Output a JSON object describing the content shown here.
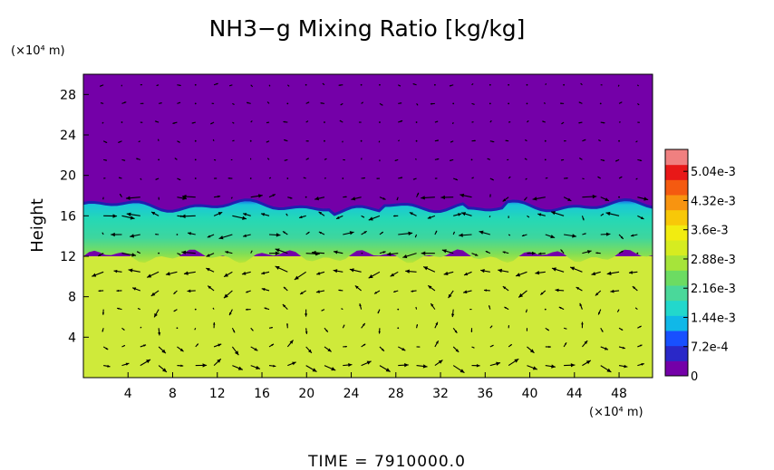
{
  "chart_data": {
    "type": "heatmap",
    "title": "NH3−g Mixing Ratio [kg/kg]",
    "ylabel": "Height",
    "x_unit": "(×10⁴ m)",
    "y_unit": "(×10⁴ m)",
    "xlim": [
      0,
      51
    ],
    "ylim": [
      0,
      30
    ],
    "x_ticks": [
      4,
      8,
      12,
      16,
      20,
      24,
      28,
      32,
      36,
      40,
      44,
      48
    ],
    "y_ticks": [
      4,
      8,
      12,
      16,
      20,
      24,
      28
    ],
    "colorbar": {
      "min": 0,
      "max": 0.00558,
      "ticks": [
        {
          "value": 0,
          "label": "0"
        },
        {
          "value": 0.00072,
          "label": "7.2e-4"
        },
        {
          "value": 0.00144,
          "label": "1.44e-3"
        },
        {
          "value": 0.00216,
          "label": "2.16e-3"
        },
        {
          "value": 0.00288,
          "label": "2.88e-3"
        },
        {
          "value": 0.0036,
          "label": "3.6e-3"
        },
        {
          "value": 0.00432,
          "label": "4.32e-3"
        },
        {
          "value": 0.00504,
          "label": "5.04e-3"
        }
      ],
      "colors": [
        "#7400a8",
        "#2a28c8",
        "#1850ff",
        "#10b8e8",
        "#22d8cc",
        "#4ad89a",
        "#6cdc62",
        "#a6e43a",
        "#d6ec20",
        "#f2ec10",
        "#f8c808",
        "#f89410",
        "#f45a10",
        "#e81818",
        "#f08080"
      ]
    },
    "fields": {
      "upper_value": 0,
      "upper_color": "#7400a8",
      "interface_height": 17.0,
      "mixed_layer_value": 0.00225,
      "mixed_layer_color": "#24d8b0",
      "transition_height": 12.0,
      "lower_value": 0.0036,
      "lower_color": "#cfea3a"
    },
    "vectors_note": "wind vectors overlaid"
  },
  "footer": {
    "time_label": "TIME  =  7910000.0"
  }
}
